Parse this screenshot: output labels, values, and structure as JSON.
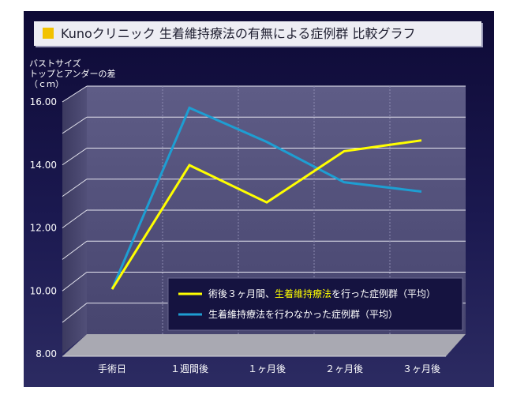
{
  "colors": {
    "accent": "#f2c200",
    "series_yellow": "#ffff00",
    "series_blue": "#1e9ed2",
    "legend_highlight": "#ffff00"
  },
  "title": {
    "icon": "yellow-square-icon",
    "text": "Kunoクリニック 生着維持療法の有無による症例群 比較グラフ"
  },
  "chart_data": {
    "type": "line",
    "title": "Kunoクリニック 生着維持療法の有無による症例群 比較グラフ",
    "ylabel_lines": [
      "バストサイズ",
      "トップとアンダーの差",
      "（ｃｍ）"
    ],
    "ylim": [
      8,
      16
    ],
    "yticks": [
      "8.00",
      "10.00",
      "12.00",
      "14.00",
      "16.00"
    ],
    "categories": [
      "手術日",
      "１週間後",
      "１ヶ月後",
      "２ヶ月後",
      "３ヶ月後"
    ],
    "grid": true,
    "legend_position": "bottom-right",
    "series": [
      {
        "name": "術後３ヶ月間、生着維持療法を行った症例群（平均）",
        "name_parts": [
          "術後３ヶ月間、",
          "生着維持療法",
          "を行った症例群（平均）"
        ],
        "color": "#ffff00",
        "values": [
          9.45,
          13.45,
          12.25,
          13.9,
          14.25
        ]
      },
      {
        "name": "生着維持療法を行わなかった症例群（平均）",
        "color": "#1e9ed2",
        "values": [
          9.45,
          15.3,
          14.2,
          12.9,
          12.6
        ]
      }
    ]
  }
}
